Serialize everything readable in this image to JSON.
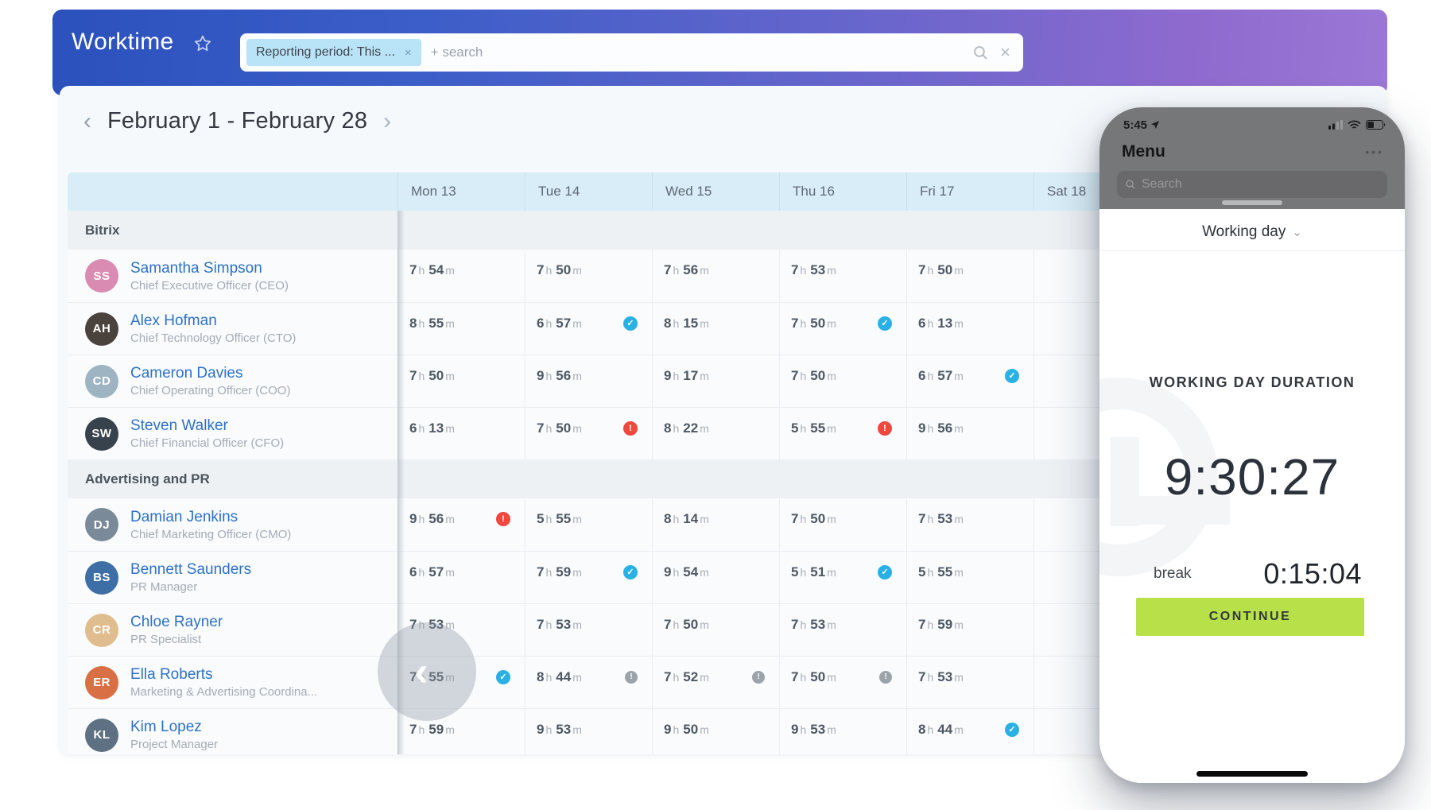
{
  "topbar": {
    "app_title": "Worktime",
    "filter_chip": "Reporting period: This ...",
    "chip_close": "×",
    "search_placeholder": "+ search",
    "clear_glyph": "×"
  },
  "date_nav": {
    "label": "February 1 - February 28",
    "prev_glyph": "‹",
    "next_glyph": "›"
  },
  "table": {
    "columns": [
      "Mon 13",
      "Tue 14",
      "Wed 15",
      "Thu 16",
      "Fri 17",
      "Sat 18"
    ],
    "units": {
      "hours": "h",
      "minutes": "m"
    },
    "groups": [
      {
        "name": "Bitrix",
        "rows": [
          {
            "name": "Samantha Simpson",
            "title": "Chief Executive Officer (CEO)",
            "cells": [
              {
                "h": "7",
                "m": "54",
                "badge": ""
              },
              {
                "h": "7",
                "m": "50",
                "badge": ""
              },
              {
                "h": "7",
                "m": "56",
                "badge": ""
              },
              {
                "h": "7",
                "m": "53",
                "badge": ""
              },
              {
                "h": "7",
                "m": "50",
                "badge": ""
              },
              {
                "h": "",
                "m": "",
                "badge": ""
              }
            ]
          },
          {
            "name": "Alex Hofman",
            "title": "Chief Technology Officer (CTO)",
            "cells": [
              {
                "h": "8",
                "m": "55",
                "badge": ""
              },
              {
                "h": "6",
                "m": "57",
                "badge": "check"
              },
              {
                "h": "8",
                "m": "15",
                "badge": ""
              },
              {
                "h": "7",
                "m": "50",
                "badge": "check"
              },
              {
                "h": "6",
                "m": "13",
                "badge": ""
              },
              {
                "h": "",
                "m": "",
                "badge": ""
              }
            ]
          },
          {
            "name": "Cameron Davies",
            "title": "Chief Operating Officer (COO)",
            "cells": [
              {
                "h": "7",
                "m": "50",
                "badge": ""
              },
              {
                "h": "9",
                "m": "56",
                "badge": ""
              },
              {
                "h": "9",
                "m": "17",
                "badge": ""
              },
              {
                "h": "7",
                "m": "50",
                "badge": ""
              },
              {
                "h": "6",
                "m": "57",
                "badge": "check"
              },
              {
                "h": "",
                "m": "",
                "badge": ""
              }
            ]
          },
          {
            "name": "Steven Walker",
            "title": "Chief Financial Officer (CFO)",
            "cells": [
              {
                "h": "6",
                "m": "13",
                "badge": ""
              },
              {
                "h": "7",
                "m": "50",
                "badge": "alert"
              },
              {
                "h": "8",
                "m": "22",
                "badge": ""
              },
              {
                "h": "5",
                "m": "55",
                "badge": "alert"
              },
              {
                "h": "9",
                "m": "56",
                "badge": ""
              },
              {
                "h": "",
                "m": "",
                "badge": ""
              }
            ]
          }
        ]
      },
      {
        "name": "Advertising and PR",
        "rows": [
          {
            "name": "Damian Jenkins",
            "title": "Chief Marketing Officer (CMO)",
            "cells": [
              {
                "h": "9",
                "m": "56",
                "badge": "alert"
              },
              {
                "h": "5",
                "m": "55",
                "badge": ""
              },
              {
                "h": "8",
                "m": "14",
                "badge": ""
              },
              {
                "h": "7",
                "m": "50",
                "badge": ""
              },
              {
                "h": "7",
                "m": "53",
                "badge": ""
              },
              {
                "h": "",
                "m": "",
                "badge": ""
              }
            ]
          },
          {
            "name": "Bennett Saunders",
            "title": "PR Manager",
            "cells": [
              {
                "h": "6",
                "m": "57",
                "badge": ""
              },
              {
                "h": "7",
                "m": "59",
                "badge": "check"
              },
              {
                "h": "9",
                "m": "54",
                "badge": ""
              },
              {
                "h": "5",
                "m": "51",
                "badge": "check"
              },
              {
                "h": "5",
                "m": "55",
                "badge": ""
              },
              {
                "h": "",
                "m": "",
                "badge": ""
              }
            ]
          },
          {
            "name": "Chloe Rayner",
            "title": "PR Specialist",
            "cells": [
              {
                "h": "7",
                "m": "53",
                "badge": ""
              },
              {
                "h": "7",
                "m": "53",
                "badge": ""
              },
              {
                "h": "7",
                "m": "50",
                "badge": ""
              },
              {
                "h": "7",
                "m": "53",
                "badge": ""
              },
              {
                "h": "7",
                "m": "59",
                "badge": ""
              },
              {
                "h": "",
                "m": "",
                "badge": ""
              }
            ]
          },
          {
            "name": "Ella Roberts",
            "title": "Marketing & Advertising Coordina...",
            "cells": [
              {
                "h": "7",
                "m": "55",
                "badge": "check"
              },
              {
                "h": "8",
                "m": "44",
                "badge": "note"
              },
              {
                "h": "7",
                "m": "52",
                "badge": "note"
              },
              {
                "h": "7",
                "m": "50",
                "badge": "note"
              },
              {
                "h": "7",
                "m": "53",
                "badge": ""
              },
              {
                "h": "",
                "m": "",
                "badge": ""
              }
            ]
          },
          {
            "name": "Kim Lopez",
            "title": "Project Manager",
            "cells": [
              {
                "h": "7",
                "m": "59",
                "badge": ""
              },
              {
                "h": "9",
                "m": "53",
                "badge": ""
              },
              {
                "h": "9",
                "m": "50",
                "badge": ""
              },
              {
                "h": "9",
                "m": "53",
                "badge": ""
              },
              {
                "h": "8",
                "m": "44",
                "badge": "check"
              },
              {
                "h": "",
                "m": "",
                "badge": ""
              }
            ]
          }
        ]
      }
    ]
  },
  "icons": {
    "check_glyph": "✓",
    "alert_glyph": "!",
    "note_glyph": "!"
  },
  "phone": {
    "status_time": "5:45",
    "screen_title": "Menu",
    "menu_more": "•••",
    "search_placeholder": "Search",
    "sheet_title": "Working day",
    "sheet_title_chevron": "⌄",
    "duration_label": "WORKING DAY DURATION",
    "duration_value": "9:30:27",
    "break_label": "break",
    "break_value": "0:15:04",
    "continue_button": "CONTINUE"
  },
  "colors": {
    "gradient_start": "#2b51bd",
    "gradient_end": "#9b77d6",
    "link_blue": "#2e71c6",
    "check_blue": "#29b1e6",
    "alert_red": "#f0483f",
    "note_gray": "#9ba3ab",
    "continue_green": "#b7e049",
    "header_strip": "#d9edf8"
  }
}
